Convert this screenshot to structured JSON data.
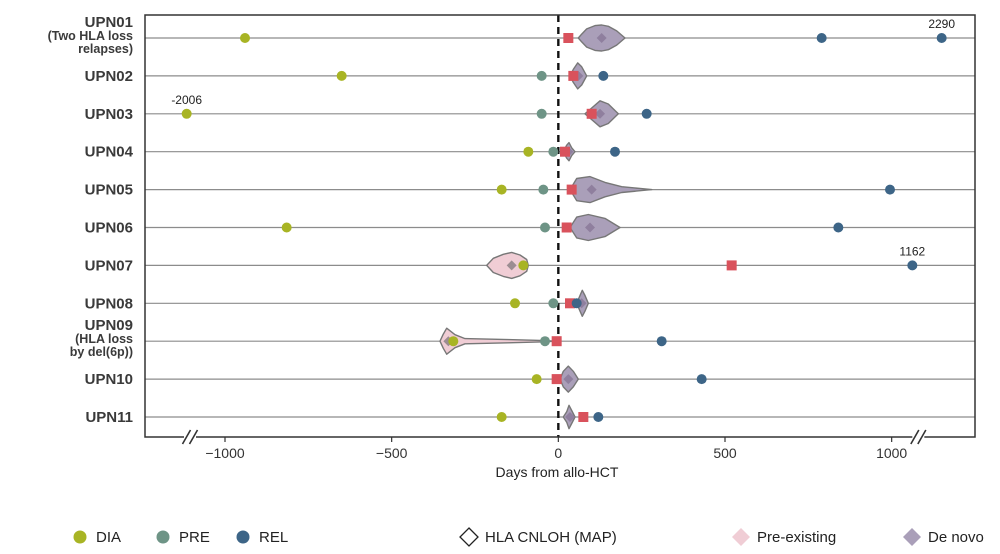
{
  "chart_data": {
    "type": "scatter",
    "xlabel": "Days from allo-HCT",
    "x_ticks": [
      -1000,
      -500,
      0,
      500,
      1000
    ],
    "xlim": [
      -1240,
      1250
    ],
    "axis_breaks": [
      -1105,
      1080
    ],
    "reference_line_x": 0,
    "grid": false,
    "colors": {
      "DIA": "#a8b424",
      "PRE": "#6e9486",
      "REL": "#3d6587",
      "MAP_marker": "#d9525c",
      "pre_existing": "#f0cdd5",
      "de_novo": "#aa9fb9",
      "violin_stroke": "#777777",
      "hline": "#8c8c8c"
    },
    "patients": [
      {
        "label_lines": [
          "UPN01",
          "(Two HLA loss",
          "relapses)"
        ],
        "events": [
          {
            "type": "DIA",
            "x": -940
          },
          {
            "type": "REL",
            "x": 790
          },
          {
            "type": "REL",
            "x": 1150
          }
        ],
        "map_x": 30,
        "violin": {
          "kind": "de_novo",
          "center": 130,
          "points": [
            [
              60,
              0
            ],
            [
              70,
              0.3
            ],
            [
              85,
              0.7
            ],
            [
              110,
              0.95
            ],
            [
              130,
              1
            ],
            [
              150,
              0.9
            ],
            [
              175,
              0.55
            ],
            [
              200,
              0
            ]
          ]
        }
      },
      {
        "label_lines": [
          "UPN02"
        ],
        "events": [
          {
            "type": "DIA",
            "x": -650
          },
          {
            "type": "PRE",
            "x": -50
          },
          {
            "type": "REL",
            "x": 135
          }
        ],
        "map_x": 45,
        "violin": {
          "kind": "de_novo",
          "center": 60,
          "points": [
            [
              35,
              0
            ],
            [
              45,
              0.5
            ],
            [
              58,
              1
            ],
            [
              70,
              0.7
            ],
            [
              85,
              0
            ]
          ]
        }
      },
      {
        "label_lines": [
          "UPN03"
        ],
        "events": [
          {
            "type": "DIA",
            "x": -1115
          },
          {
            "type": "PRE",
            "x": -50
          },
          {
            "type": "REL",
            "x": 265
          }
        ],
        "map_x": 100,
        "violin": {
          "kind": "de_novo",
          "center": 125,
          "points": [
            [
              80,
              0
            ],
            [
              100,
              0.45
            ],
            [
              125,
              1
            ],
            [
              150,
              0.75
            ],
            [
              180,
              0
            ]
          ]
        }
      },
      {
        "label_lines": [
          "UPN04"
        ],
        "events": [
          {
            "type": "DIA",
            "x": -90
          },
          {
            "type": "PRE",
            "x": -15
          },
          {
            "type": "REL",
            "x": 170
          }
        ],
        "map_x": 20,
        "violin": {
          "kind": "de_novo",
          "center": 30,
          "points": [
            [
              15,
              0
            ],
            [
              25,
              0.5
            ],
            [
              32,
              0.7
            ],
            [
              40,
              0.3
            ],
            [
              50,
              0
            ]
          ]
        }
      },
      {
        "label_lines": [
          "UPN05"
        ],
        "events": [
          {
            "type": "DIA",
            "x": -170
          },
          {
            "type": "PRE",
            "x": -45
          },
          {
            "type": "REL",
            "x": 995
          }
        ],
        "map_x": 40,
        "violin": {
          "kind": "de_novo",
          "center": 100,
          "points": [
            [
              35,
              0
            ],
            [
              55,
              0.85
            ],
            [
              95,
              1
            ],
            [
              140,
              0.55
            ],
            [
              190,
              0.22
            ],
            [
              280,
              0
            ]
          ]
        }
      },
      {
        "label_lines": [
          "UPN06"
        ],
        "events": [
          {
            "type": "DIA",
            "x": -815
          },
          {
            "type": "PRE",
            "x": -40
          },
          {
            "type": "REL",
            "x": 840
          }
        ],
        "map_x": 25,
        "violin": {
          "kind": "de_novo",
          "center": 95,
          "points": [
            [
              35,
              0
            ],
            [
              55,
              0.8
            ],
            [
              90,
              1
            ],
            [
              140,
              0.7
            ],
            [
              185,
              0
            ]
          ]
        }
      },
      {
        "label_lines": [
          "UPN07"
        ],
        "events": [
          {
            "type": "DIA",
            "x": -105
          },
          {
            "type": "REL",
            "x": 1062
          }
        ],
        "map_x": 520,
        "violin": {
          "kind": "pre_existing",
          "center": -140,
          "points": [
            [
              -215,
              0
            ],
            [
              -195,
              0.55
            ],
            [
              -165,
              0.85
            ],
            [
              -140,
              1
            ],
            [
              -115,
              0.8
            ],
            [
              -95,
              0.45
            ],
            [
              -90,
              0
            ]
          ]
        }
      },
      {
        "label_lines": [
          "UPN08"
        ],
        "events": [
          {
            "type": "DIA",
            "x": -130
          },
          {
            "type": "PRE",
            "x": -15
          },
          {
            "type": "REL",
            "x": 55
          }
        ],
        "map_x": 35,
        "violin": {
          "kind": "de_novo",
          "center": 70,
          "points": [
            [
              55,
              0
            ],
            [
              65,
              0.6
            ],
            [
              72,
              1
            ],
            [
              80,
              0.6
            ],
            [
              90,
              0
            ]
          ]
        }
      },
      {
        "label_lines": [
          "UPN09",
          "(HLA loss",
          "by del(6p))"
        ],
        "events": [
          {
            "type": "DIA",
            "x": -315
          },
          {
            "type": "PRE",
            "x": -40
          },
          {
            "type": "REL",
            "x": 310
          }
        ],
        "map_x": -5,
        "violin": {
          "kind": "pre_existing",
          "center": -330,
          "points": [
            [
              -355,
              0
            ],
            [
              -345,
              0.55
            ],
            [
              -335,
              1
            ],
            [
              -310,
              0.5
            ],
            [
              -280,
              0.2
            ],
            [
              -150,
              0.12
            ],
            [
              -40,
              0.05
            ],
            [
              -10,
              0
            ]
          ]
        }
      },
      {
        "label_lines": [
          "UPN10"
        ],
        "events": [
          {
            "type": "DIA",
            "x": -65
          },
          {
            "type": "REL",
            "x": 430
          }
        ],
        "map_x": -5,
        "violin": {
          "kind": "de_novo",
          "center": 30,
          "points": [
            [
              5,
              0
            ],
            [
              15,
              0.6
            ],
            [
              30,
              1
            ],
            [
              45,
              0.6
            ],
            [
              60,
              0
            ]
          ]
        }
      },
      {
        "label_lines": [
          "UPN11"
        ],
        "events": [
          {
            "type": "DIA",
            "x": -170
          },
          {
            "type": "REL",
            "x": 120
          }
        ],
        "map_x": 75,
        "violin": {
          "kind": "de_novo",
          "center": 35,
          "points": [
            [
              15,
              0
            ],
            [
              25,
              0.4
            ],
            [
              32,
              0.9
            ],
            [
              40,
              0.5
            ],
            [
              50,
              0
            ]
          ]
        }
      }
    ],
    "annotations": [
      {
        "text": "2290",
        "x": 1150,
        "patient": 0
      },
      {
        "text": "-2006",
        "x": -1115,
        "patient": 2
      },
      {
        "text": "1162",
        "x": 1062,
        "patient": 6
      }
    ],
    "legend": {
      "placement": "bottom",
      "items": [
        {
          "key": "DIA",
          "shape": "circle",
          "label": "DIA"
        },
        {
          "key": "PRE",
          "shape": "circle",
          "label": "PRE"
        },
        {
          "key": "REL",
          "shape": "circle",
          "label": "REL"
        },
        {
          "key": "MAP",
          "shape": "diamond-outline",
          "label": "HLA CNLOH (MAP)"
        },
        {
          "key": "pre_existing",
          "shape": "diamond",
          "label": "Pre-existing"
        },
        {
          "key": "de_novo",
          "shape": "diamond",
          "label": "De novo"
        }
      ]
    }
  }
}
